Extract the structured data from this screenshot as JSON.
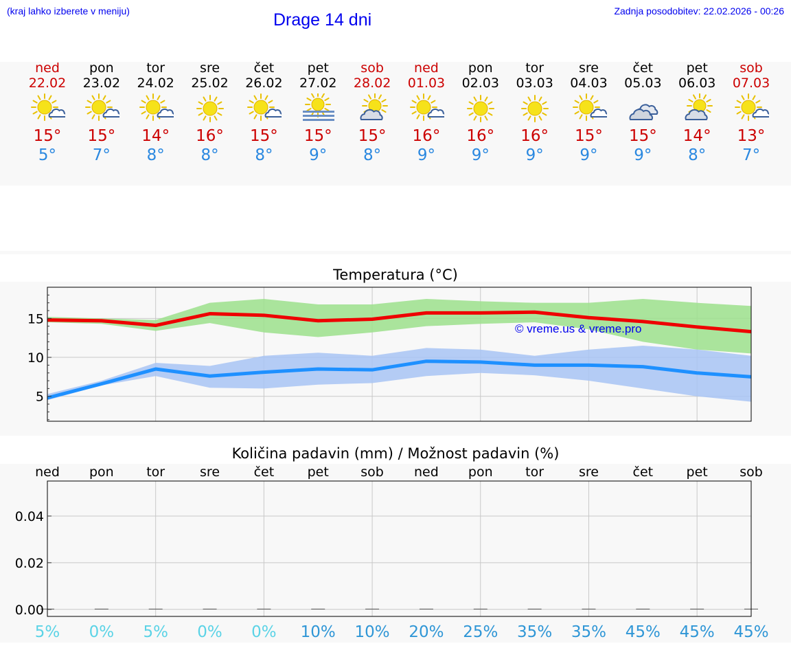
{
  "header": {
    "left_note": "(kraj lahko izberete v meniju)",
    "title": "Drage 14 dni",
    "last_update": "Zadnja posodobitev: 22.02.2026 - 00:26"
  },
  "forecast": [
    {
      "day": "ned",
      "date": "22.02",
      "weekend": true,
      "icon": "sun-cloud-icon",
      "max": "15°",
      "min": "5°"
    },
    {
      "day": "pon",
      "date": "23.02",
      "weekend": false,
      "icon": "sun-cloud-icon",
      "max": "15°",
      "min": "7°"
    },
    {
      "day": "tor",
      "date": "24.02",
      "weekend": false,
      "icon": "sun-cloud-icon",
      "max": "14°",
      "min": "8°"
    },
    {
      "day": "sre",
      "date": "25.02",
      "weekend": false,
      "icon": "sun-icon",
      "max": "16°",
      "min": "8°"
    },
    {
      "day": "čet",
      "date": "26.02",
      "weekend": false,
      "icon": "sun-cloud-icon",
      "max": "15°",
      "min": "8°"
    },
    {
      "day": "pet",
      "date": "27.02",
      "weekend": false,
      "icon": "sun-fog-icon",
      "max": "15°",
      "min": "9°"
    },
    {
      "day": "sob",
      "date": "28.02",
      "weekend": true,
      "icon": "cloud-sun-icon",
      "max": "15°",
      "min": "8°"
    },
    {
      "day": "ned",
      "date": "01.03",
      "weekend": true,
      "icon": "sun-cloud-icon",
      "max": "16°",
      "min": "9°"
    },
    {
      "day": "pon",
      "date": "02.03",
      "weekend": false,
      "icon": "sun-icon",
      "max": "16°",
      "min": "9°"
    },
    {
      "day": "tor",
      "date": "03.03",
      "weekend": false,
      "icon": "sun-icon",
      "max": "16°",
      "min": "9°"
    },
    {
      "day": "sre",
      "date": "04.03",
      "weekend": false,
      "icon": "sun-cloud-icon",
      "max": "15°",
      "min": "9°"
    },
    {
      "day": "čet",
      "date": "05.03",
      "weekend": false,
      "icon": "clouds-icon",
      "max": "15°",
      "min": "9°"
    },
    {
      "day": "pet",
      "date": "06.03",
      "weekend": false,
      "icon": "cloud-sun-icon",
      "max": "14°",
      "min": "8°"
    },
    {
      "day": "sob",
      "date": "07.03",
      "weekend": true,
      "icon": "sun-cloud-icon",
      "max": "13°",
      "min": "7°"
    }
  ],
  "chart_data": [
    {
      "type": "line",
      "title": "Temperatura (°C)",
      "watermark": "© vreme.us & vreme.pro",
      "x": [
        "22.02",
        "23.02",
        "24.02",
        "25.02",
        "26.02",
        "27.02",
        "28.02",
        "01.03",
        "02.03",
        "03.03",
        "04.03",
        "05.03",
        "06.03",
        "07.03"
      ],
      "ylim": [
        1.8,
        19.0
      ],
      "yticks": [
        5,
        10,
        15
      ],
      "series": [
        {
          "color": "#ee0000",
          "values": [
            14.8,
            14.7,
            14.1,
            15.6,
            15.4,
            14.7,
            14.9,
            15.7,
            15.7,
            15.8,
            15.1,
            14.6,
            13.9,
            13.3
          ]
        },
        {
          "color": "#1e90ff",
          "values": [
            4.8,
            6.6,
            8.5,
            7.6,
            8.1,
            8.5,
            8.4,
            9.5,
            9.4,
            9.0,
            9.0,
            8.8,
            8.0,
            7.5
          ]
        }
      ],
      "bands": [
        {
          "color": "#9ce08c",
          "upper": [
            15.2,
            15.0,
            14.8,
            17.0,
            17.5,
            16.8,
            16.8,
            17.5,
            17.2,
            17.0,
            17.0,
            17.5,
            17.0,
            16.6
          ],
          "lower": [
            14.5,
            14.3,
            13.4,
            14.4,
            13.2,
            12.6,
            13.2,
            14.0,
            14.3,
            14.5,
            13.6,
            12.0,
            11.0,
            10.5
          ]
        },
        {
          "color": "#a8c4f4",
          "upper": [
            5.3,
            7.0,
            9.3,
            8.9,
            10.2,
            10.6,
            10.2,
            11.2,
            11.0,
            10.2,
            11.0,
            11.5,
            11.0,
            10.2
          ],
          "lower": [
            4.5,
            6.4,
            7.6,
            6.1,
            6.0,
            6.5,
            6.7,
            7.6,
            8.0,
            7.7,
            7.0,
            6.0,
            5.0,
            4.3
          ]
        }
      ],
      "grid": true
    },
    {
      "type": "bar",
      "title": "Količina padavin (mm) / Možnost padavin (%)",
      "categories": [
        "ned",
        "pon",
        "tor",
        "sre",
        "čet",
        "pet",
        "sob",
        "ned",
        "pon",
        "tor",
        "sre",
        "čet",
        "pet",
        "sob"
      ],
      "values": [
        0,
        0,
        0,
        0,
        0,
        0,
        0,
        0,
        0,
        0,
        0,
        0,
        0,
        0
      ],
      "ylim": [
        -0.003,
        0.055
      ],
      "yticks": [
        "0.00",
        "0.02",
        "0.04"
      ],
      "ytick_values": [
        0,
        0.02,
        0.04
      ],
      "probability_labels": [
        "5%",
        "0%",
        "5%",
        "0%",
        "0%",
        "10%",
        "10%",
        "20%",
        "25%",
        "35%",
        "35%",
        "45%",
        "45%",
        "45%"
      ],
      "probability_values": [
        5,
        0,
        5,
        0,
        0,
        10,
        10,
        20,
        25,
        35,
        35,
        45,
        45,
        45
      ],
      "probability_colors": {
        "low": "#5bd3e6",
        "high": "#2f96d6"
      },
      "grid": true
    }
  ]
}
